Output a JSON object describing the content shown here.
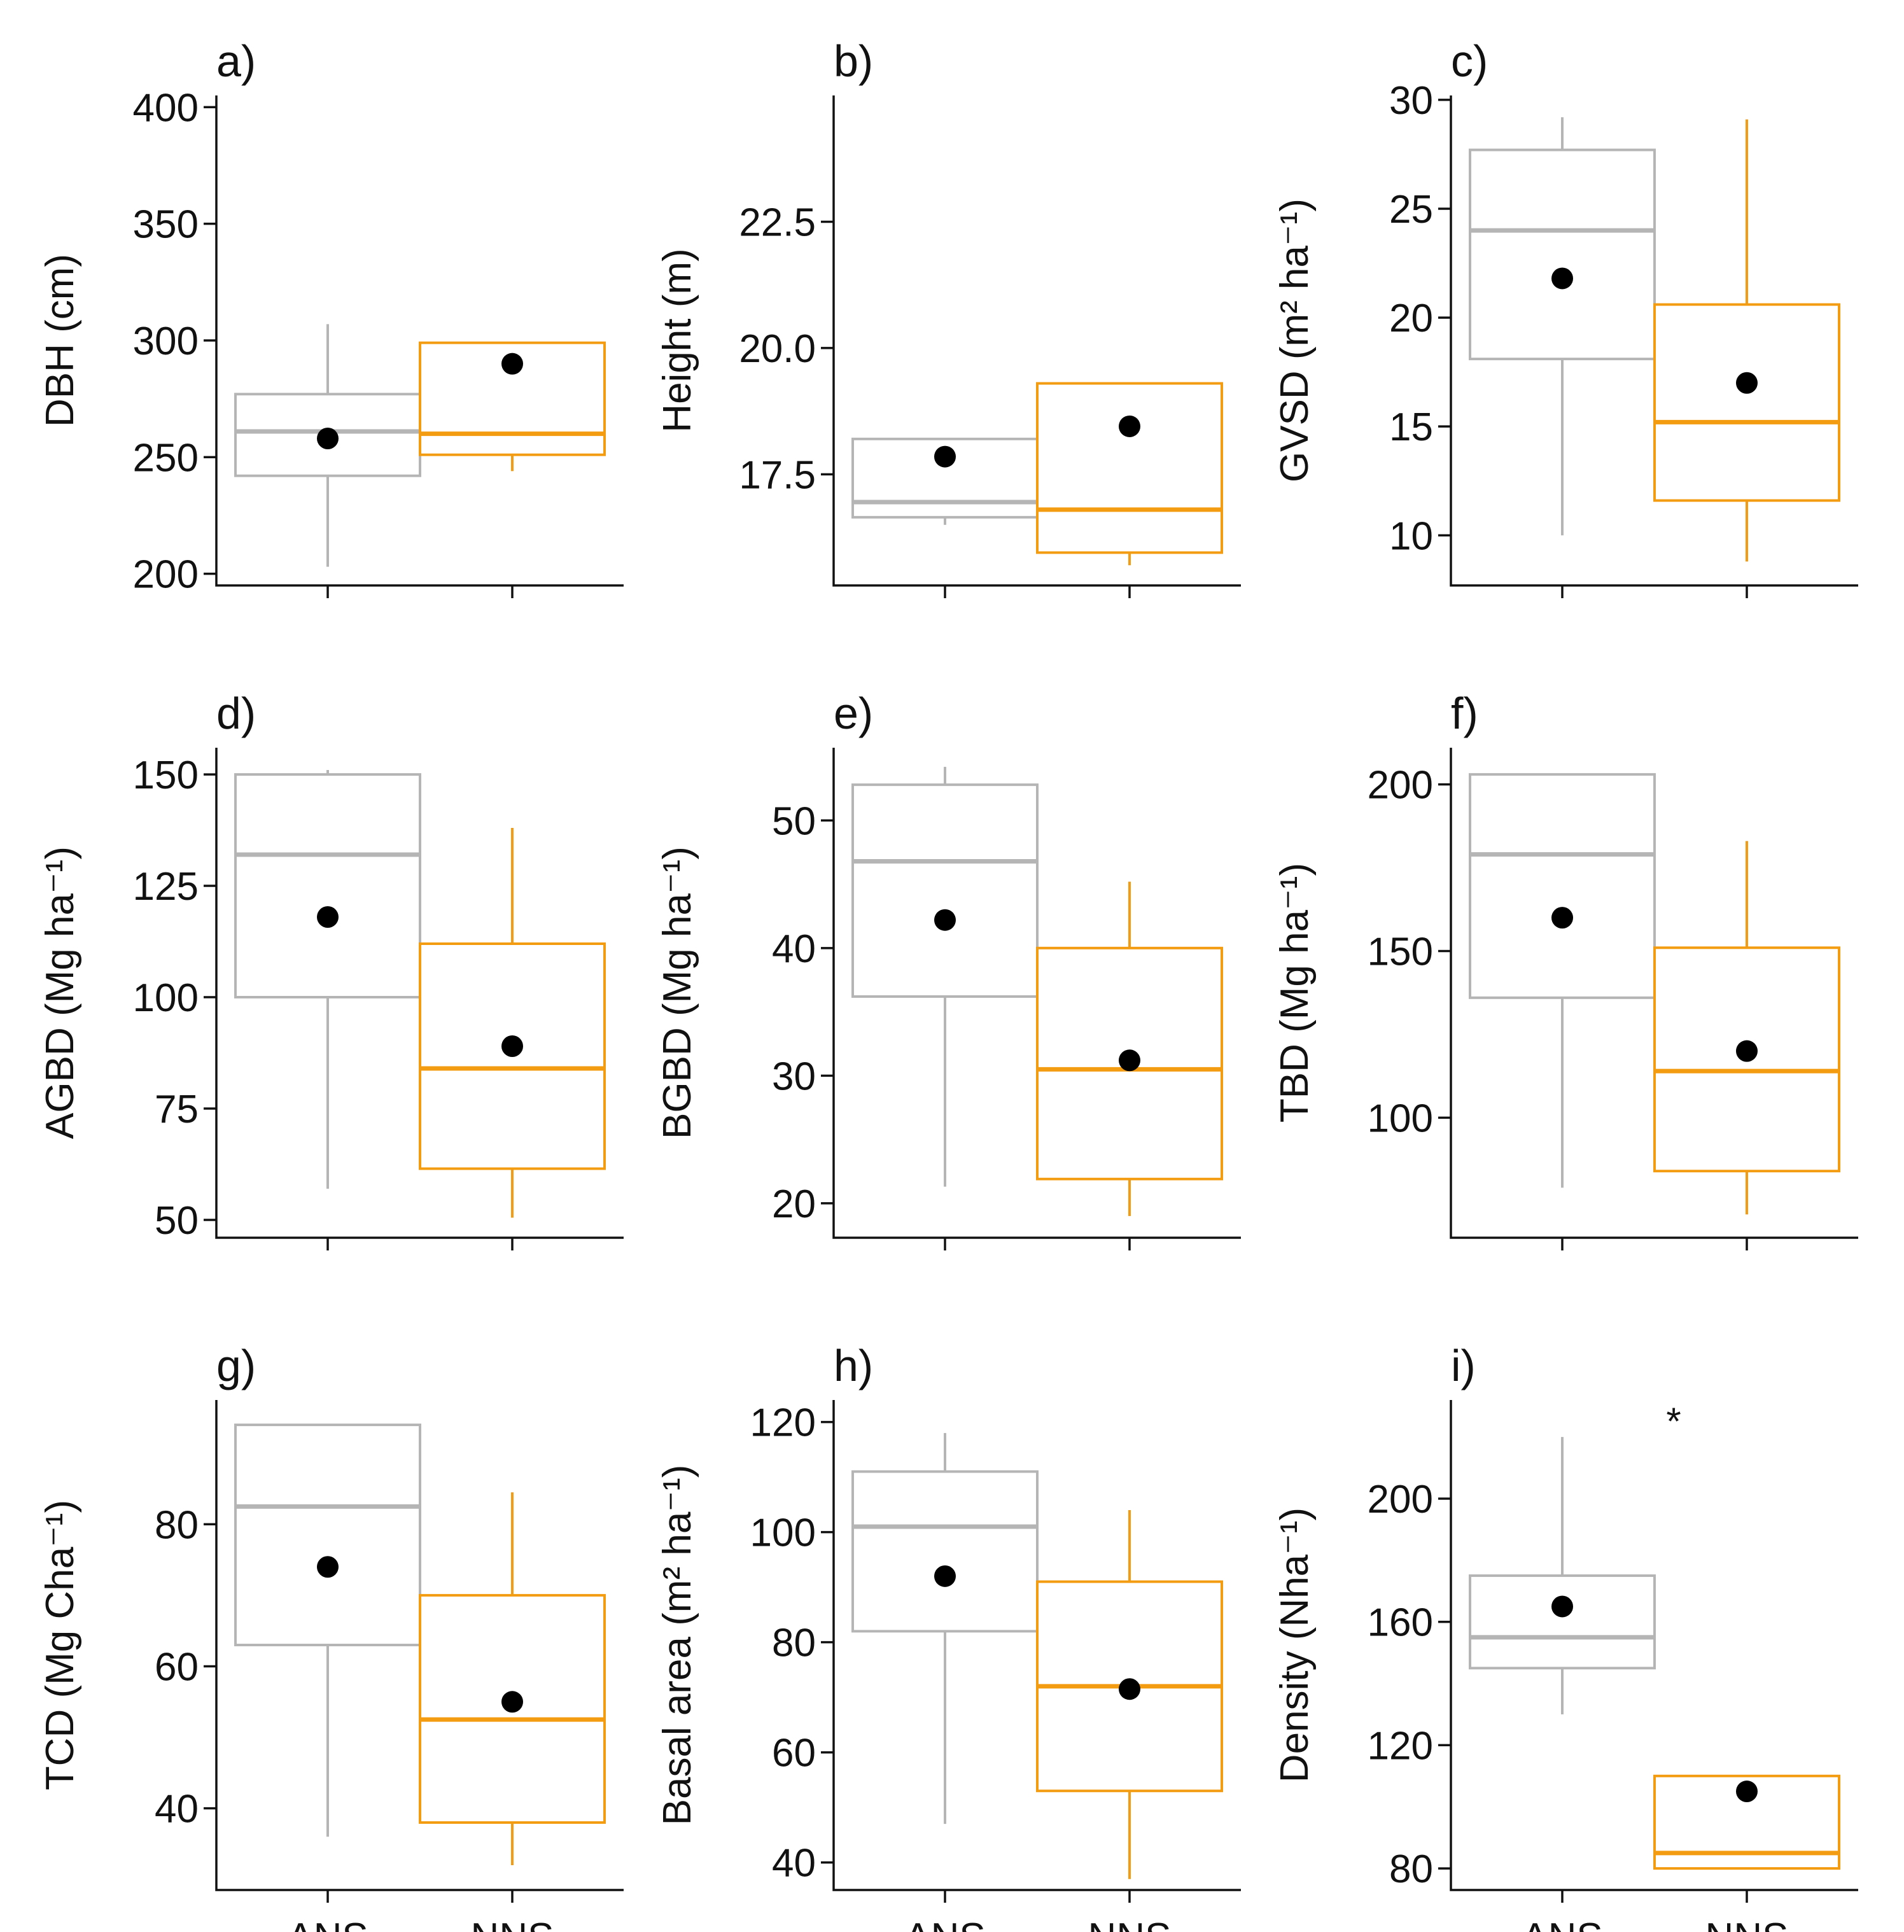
{
  "chart_data": {
    "type": "box",
    "group_colors": {
      "ANS": "#b5b5b5",
      "NNS": "#f39c12"
    },
    "mean_marker_color": "#000000",
    "panels": [
      {
        "label": "a)",
        "ylabel": "DBH (cm)",
        "ylim": [
          195,
          405
        ],
        "yticks": [
          200,
          250,
          300,
          350,
          400
        ],
        "ytick_labels": [
          "200",
          "250",
          "300",
          "350",
          "400"
        ],
        "categories": [
          "ANS",
          "NNS"
        ],
        "boxes": [
          {
            "group": "ANS",
            "whisker_low": 203,
            "q1": 242,
            "median": 261,
            "q3": 277,
            "whisker_high": 307,
            "mean": 258
          },
          {
            "group": "NNS",
            "whisker_low": 244,
            "q1": 251,
            "median": 260,
            "q3": 299,
            "whisker_high": 299,
            "mean": 290
          }
        ]
      },
      {
        "label": "b)",
        "ylabel": "Height (m)",
        "ylim": [
          15.3,
          25.0
        ],
        "yticks": [
          17.5,
          20.0,
          22.5
        ],
        "ytick_labels": [
          "17.5",
          "20.0",
          "22.5"
        ],
        "categories": [
          "ANS",
          "NNS"
        ],
        "boxes": [
          {
            "group": "ANS",
            "whisker_low": 16.5,
            "q1": 16.65,
            "median": 16.95,
            "q3": 18.2,
            "whisker_high": 18.2,
            "mean": 17.85
          },
          {
            "group": "NNS",
            "whisker_low": 15.7,
            "q1": 15.95,
            "median": 16.8,
            "q3": 19.3,
            "whisker_high": 19.3,
            "mean": 18.45
          }
        ]
      },
      {
        "label": "c)",
        "ylabel": "GVSD (m² ha⁻¹)",
        "ylim": [
          7.7,
          30.2
        ],
        "yticks": [
          10,
          15,
          20,
          25,
          30
        ],
        "ytick_labels": [
          "10",
          "15",
          "20",
          "25",
          "30"
        ],
        "categories": [
          "ANS",
          "NNS"
        ],
        "boxes": [
          {
            "group": "ANS",
            "whisker_low": 10.0,
            "q1": 18.1,
            "median": 24.0,
            "q3": 27.7,
            "whisker_high": 29.2,
            "mean": 21.8
          },
          {
            "group": "NNS",
            "whisker_low": 8.8,
            "q1": 11.6,
            "median": 15.2,
            "q3": 20.6,
            "whisker_high": 29.1,
            "mean": 17.0
          }
        ]
      },
      {
        "label": "d)",
        "ylabel": "AGBD (Mg ha⁻¹)",
        "ylim": [
          46,
          156
        ],
        "yticks": [
          50,
          75,
          100,
          125,
          150
        ],
        "ytick_labels": [
          "50",
          "75",
          "100",
          "125",
          "150"
        ],
        "categories": [
          "ANS",
          "NNS"
        ],
        "boxes": [
          {
            "group": "ANS",
            "whisker_low": 57,
            "q1": 100,
            "median": 132,
            "q3": 150,
            "whisker_high": 151,
            "mean": 118
          },
          {
            "group": "NNS",
            "whisker_low": 50.5,
            "q1": 61.5,
            "median": 84,
            "q3": 112,
            "whisker_high": 138,
            "mean": 89
          }
        ]
      },
      {
        "label": "e)",
        "ylabel": "BGBD (Mg ha⁻¹)",
        "ylim": [
          17.3,
          55.7
        ],
        "yticks": [
          20,
          30,
          40,
          50
        ],
        "ytick_labels": [
          "20",
          "30",
          "40",
          "50"
        ],
        "categories": [
          "ANS",
          "NNS"
        ],
        "boxes": [
          {
            "group": "ANS",
            "whisker_low": 21.3,
            "q1": 36.2,
            "median": 46.8,
            "q3": 52.8,
            "whisker_high": 54.2,
            "mean": 42.2
          },
          {
            "group": "NNS",
            "whisker_low": 19.0,
            "q1": 21.9,
            "median": 30.5,
            "q3": 40.0,
            "whisker_high": 45.2,
            "mean": 31.2
          }
        ]
      },
      {
        "label": "f)",
        "ylabel": "TBD (Mg ha⁻¹)",
        "ylim": [
          64,
          211
        ],
        "yticks": [
          100,
          150,
          200
        ],
        "ytick_labels": [
          "100",
          "150",
          "200"
        ],
        "categories": [
          "ANS",
          "NNS"
        ],
        "boxes": [
          {
            "group": "ANS",
            "whisker_low": 79,
            "q1": 136,
            "median": 179,
            "q3": 203,
            "whisker_high": 203,
            "mean": 160
          },
          {
            "group": "NNS",
            "whisker_low": 71,
            "q1": 84,
            "median": 114,
            "q3": 151,
            "whisker_high": 183,
            "mean": 120
          }
        ]
      },
      {
        "label": "g)",
        "ylabel": "TCD (Mg Cha⁻¹)",
        "ylim": [
          28.5,
          97.5
        ],
        "yticks": [
          40,
          60,
          80
        ],
        "ytick_labels": [
          "40",
          "60",
          "80"
        ],
        "categories": [
          "ANS",
          "NNS"
        ],
        "boxes": [
          {
            "group": "ANS",
            "whisker_low": 36,
            "q1": 63,
            "median": 82.5,
            "q3": 94,
            "whisker_high": 94,
            "mean": 74
          },
          {
            "group": "NNS",
            "whisker_low": 32,
            "q1": 38,
            "median": 52.5,
            "q3": 70,
            "whisker_high": 84.5,
            "mean": 55
          }
        ]
      },
      {
        "label": "h)",
        "ylabel": "Basal area (m² ha⁻¹)",
        "ylim": [
          35,
          124
        ],
        "yticks": [
          40,
          60,
          80,
          100,
          120
        ],
        "ytick_labels": [
          "40",
          "60",
          "80",
          "100",
          "120"
        ],
        "categories": [
          "ANS",
          "NNS"
        ],
        "boxes": [
          {
            "group": "ANS",
            "whisker_low": 47,
            "q1": 82,
            "median": 101,
            "q3": 111,
            "whisker_high": 118,
            "mean": 92
          },
          {
            "group": "NNS",
            "whisker_low": 37,
            "q1": 53,
            "median": 72,
            "q3": 91,
            "whisker_high": 104,
            "mean": 71.5
          }
        ]
      },
      {
        "label": "i)",
        "ylabel": "Density (Nha⁻¹)",
        "ylim": [
          73,
          232
        ],
        "yticks": [
          80,
          120,
          160,
          200
        ],
        "ytick_labels": [
          "80",
          "120",
          "160",
          "200"
        ],
        "categories": [
          "ANS",
          "NNS"
        ],
        "significance": "*",
        "boxes": [
          {
            "group": "ANS",
            "whisker_low": 130,
            "q1": 145,
            "median": 155,
            "q3": 175,
            "whisker_high": 220,
            "mean": 165
          },
          {
            "group": "NNS",
            "whisker_low": 80,
            "q1": 80,
            "median": 85,
            "q3": 110,
            "whisker_high": 110,
            "mean": 105
          }
        ]
      }
    ]
  }
}
